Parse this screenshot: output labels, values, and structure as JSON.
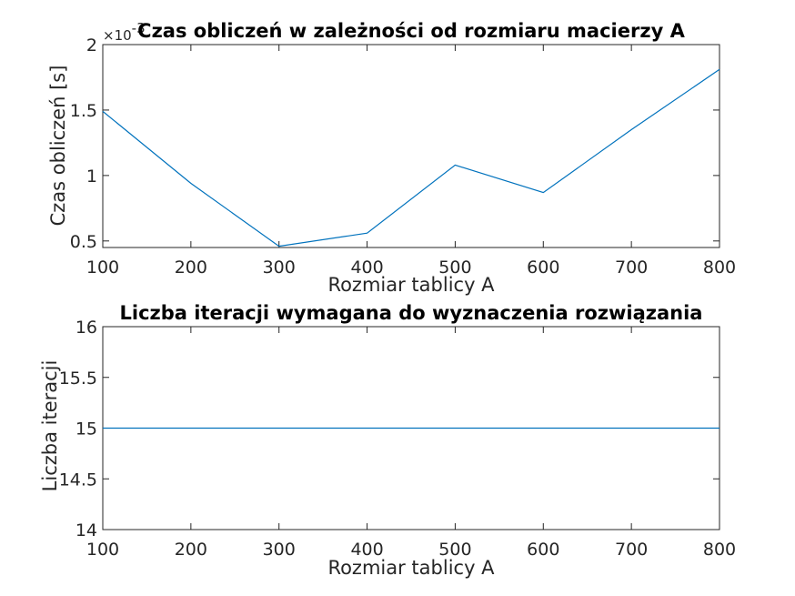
{
  "chart_data": [
    {
      "type": "line",
      "title": "Czas obliczeń w zależności od rozmiaru macierzy A",
      "xlabel": "Rozmiar tablicy A",
      "ylabel": "Czas obliczeń [s]",
      "y_exponent_label": "×10",
      "y_exponent_power": "-3",
      "xlim": [
        100,
        800
      ],
      "ylim": [
        0.45,
        2
      ],
      "xticks": [
        100,
        200,
        300,
        400,
        500,
        600,
        700,
        800
      ],
      "yticks": [
        0.5,
        1,
        1.5,
        2
      ],
      "ytick_labels": [
        "0.5",
        "1",
        "1.5",
        "2"
      ],
      "grid": false,
      "color": "#0072BD",
      "series": [
        {
          "x": [
            100,
            200,
            300,
            400,
            500,
            600,
            700,
            800
          ],
          "y": [
            1.49,
            0.94,
            0.46,
            0.56,
            1.08,
            0.87,
            1.35,
            1.81
          ]
        }
      ]
    },
    {
      "type": "line",
      "title": "Liczba iteracji wymagana do wyznaczenia rozwiązania",
      "xlabel": "Rozmiar tablicy A",
      "ylabel": "Liczba iteracji",
      "xlim": [
        100,
        800
      ],
      "ylim": [
        14,
        16
      ],
      "xticks": [
        100,
        200,
        300,
        400,
        500,
        600,
        700,
        800
      ],
      "yticks": [
        14,
        14.5,
        15,
        15.5,
        16
      ],
      "ytick_labels": [
        "14",
        "14.5",
        "15",
        "15.5",
        "16"
      ],
      "grid": false,
      "color": "#0072BD",
      "series": [
        {
          "x": [
            100,
            200,
            300,
            400,
            500,
            600,
            700,
            800
          ],
          "y": [
            15,
            15,
            15,
            15,
            15,
            15,
            15,
            15
          ]
        }
      ]
    }
  ]
}
